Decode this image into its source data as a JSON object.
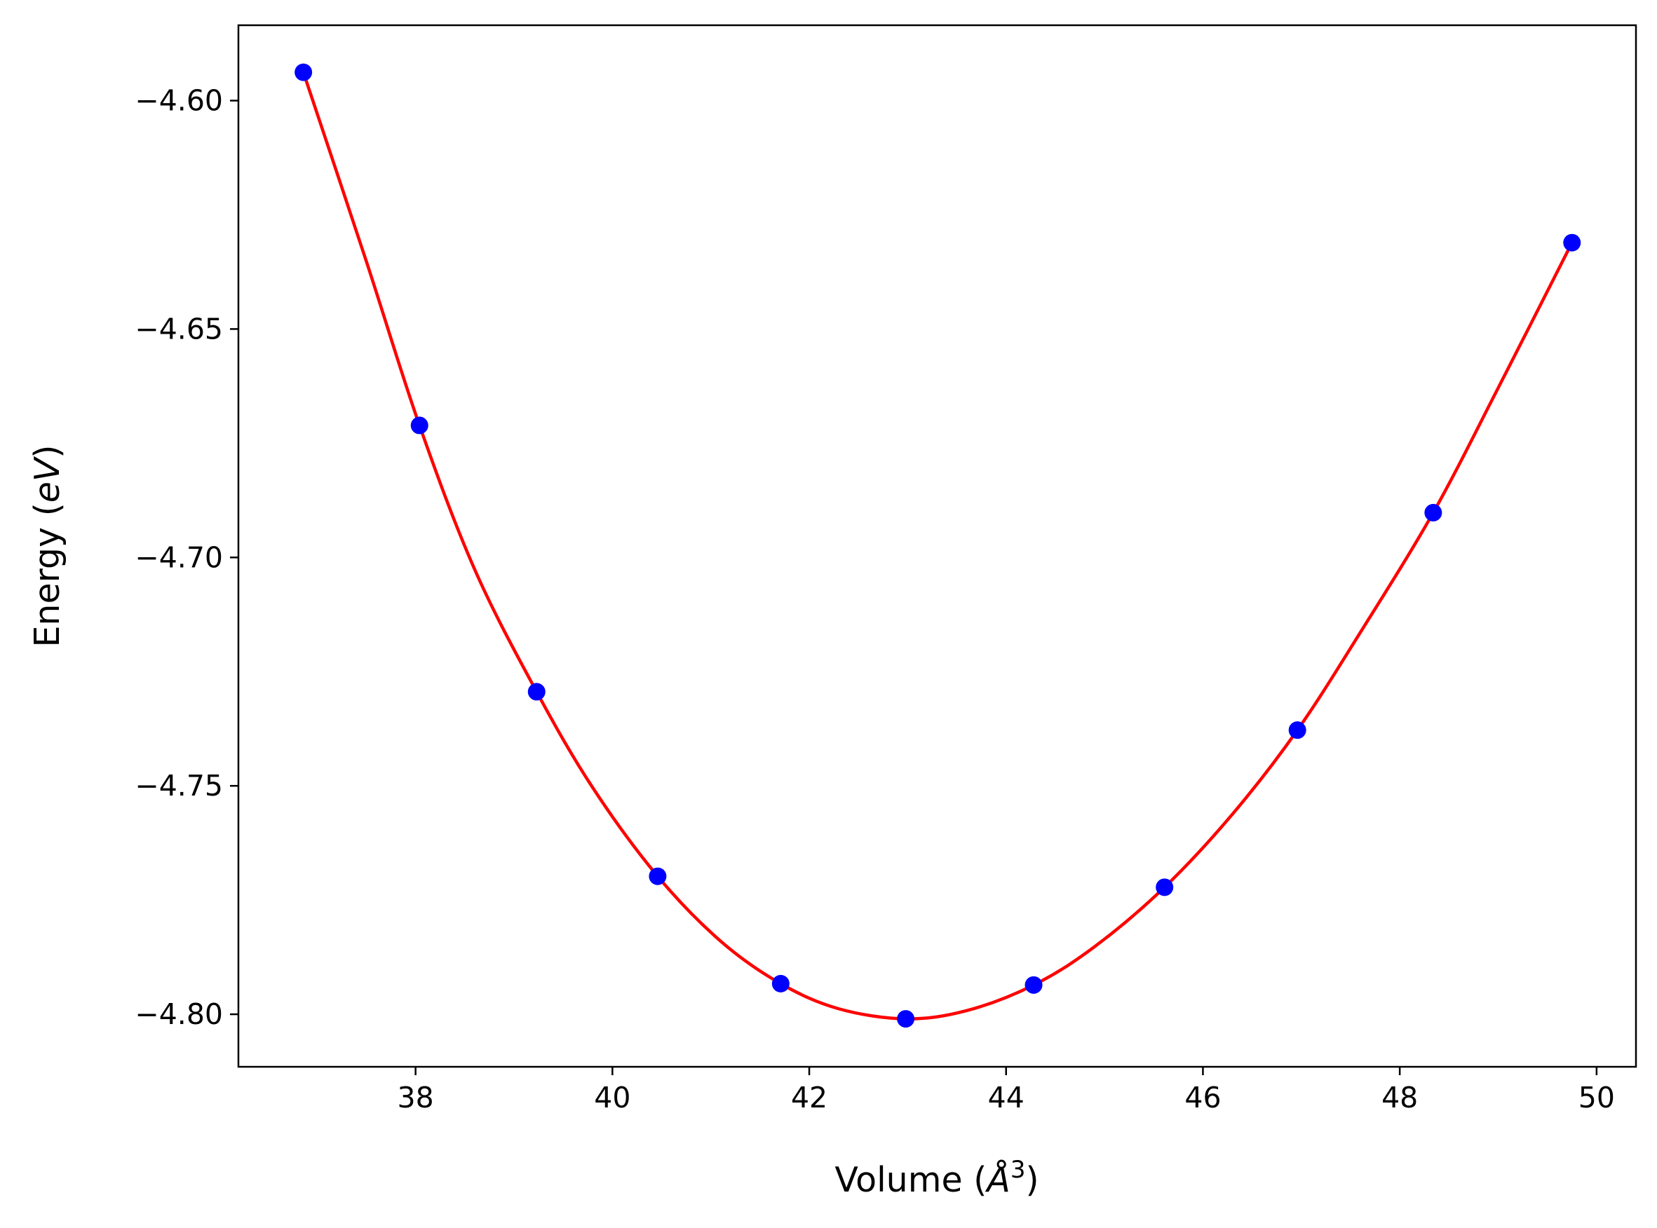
{
  "chart_data": {
    "type": "line",
    "title": "",
    "xlabel": "Volume",
    "xlabel_unit": "Å",
    "xlabel_unit_superscript": "3",
    "ylabel": "Energy",
    "ylabel_unit": "eV",
    "xlim": [
      36.2,
      50.4
    ],
    "ylim": [
      -4.8115,
      -4.5835
    ],
    "x_ticks": [
      38,
      40,
      42,
      44,
      46,
      48,
      50
    ],
    "x_tick_labels": [
      "38",
      "40",
      "42",
      "44",
      "46",
      "48",
      "50"
    ],
    "y_ticks": [
      -4.6,
      -4.65,
      -4.7,
      -4.75,
      -4.8
    ],
    "y_tick_labels": [
      "−4.60",
      "−4.65",
      "−4.70",
      "−4.75",
      "−4.80"
    ],
    "grid": false,
    "legend": "none",
    "series": [
      {
        "kind": "scatter",
        "color": "#0000ff",
        "x": [
          36.86,
          38.04,
          39.23,
          40.46,
          41.71,
          42.98,
          44.28,
          45.61,
          46.96,
          48.34,
          49.75
        ],
        "y": [
          -4.5938,
          -4.6711,
          -4.7294,
          -4.7698,
          -4.7933,
          -4.801,
          -4.7936,
          -4.7722,
          -4.7378,
          -4.6902,
          -4.6311
        ]
      },
      {
        "kind": "fit-line",
        "color": "#ff0000",
        "x": [
          36.86,
          37.5,
          38.04,
          38.6,
          39.23,
          39.8,
          40.46,
          41.1,
          41.71,
          42.3,
          42.98,
          43.6,
          44.28,
          44.9,
          45.61,
          46.3,
          46.96,
          47.6,
          48.34,
          49.0,
          49.75
        ],
        "y": [
          -4.5938,
          -4.6352,
          -4.6711,
          -4.7026,
          -4.7294,
          -4.7504,
          -4.7698,
          -4.784,
          -4.7933,
          -4.7988,
          -4.801,
          -4.7992,
          -4.7936,
          -4.7852,
          -4.7722,
          -4.7562,
          -4.7378,
          -4.7164,
          -4.6902,
          -4.6629,
          -4.6311
        ]
      }
    ]
  }
}
